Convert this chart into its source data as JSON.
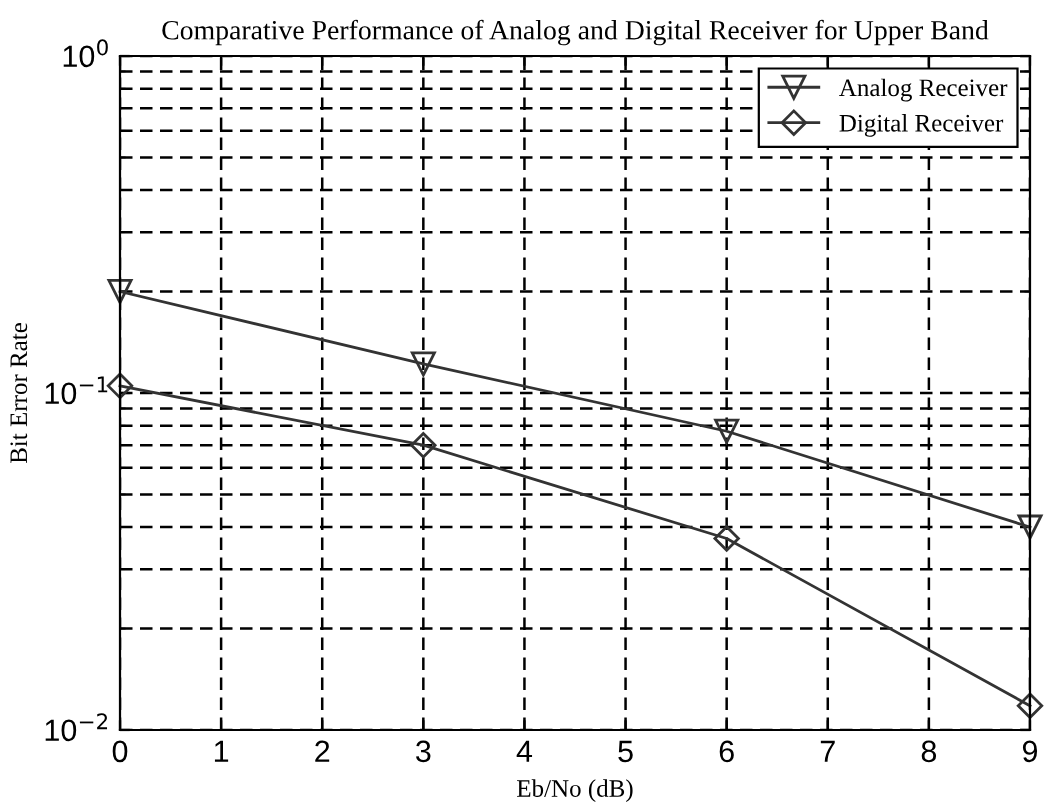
{
  "chart_data": {
    "type": "line",
    "title": "Comparative Performance of Analog and Digital Receiver for Upper Band",
    "xlabel": "Eb/No (dB)",
    "ylabel": "Bit Error Rate",
    "x": [
      0,
      3,
      6,
      9
    ],
    "series": [
      {
        "name": "Analog Receiver",
        "color": "#333333",
        "marker": "triangle",
        "values": [
          0.2,
          0.122,
          0.077,
          0.04
        ]
      },
      {
        "name": "Digital Receiver",
        "color": "#333333",
        "marker": "diamond",
        "values": [
          0.105,
          0.07,
          0.037,
          0.0118
        ]
      }
    ],
    "log": "y",
    "xlim": [
      0,
      9
    ],
    "xticks": [
      0,
      1,
      2,
      3,
      4,
      5,
      6,
      7,
      8,
      9
    ],
    "ylim": [
      0.01,
      1
    ],
    "yticks": [
      {
        "value": 0.01,
        "label": "10$^{−2}$"
      },
      {
        "value": 0.1,
        "label": "10$^{−1}$"
      },
      {
        "value": 1,
        "label": "10$^{0}$"
      }
    ],
    "grid": true,
    "legend": "top right",
    "line_style": "solid"
  }
}
